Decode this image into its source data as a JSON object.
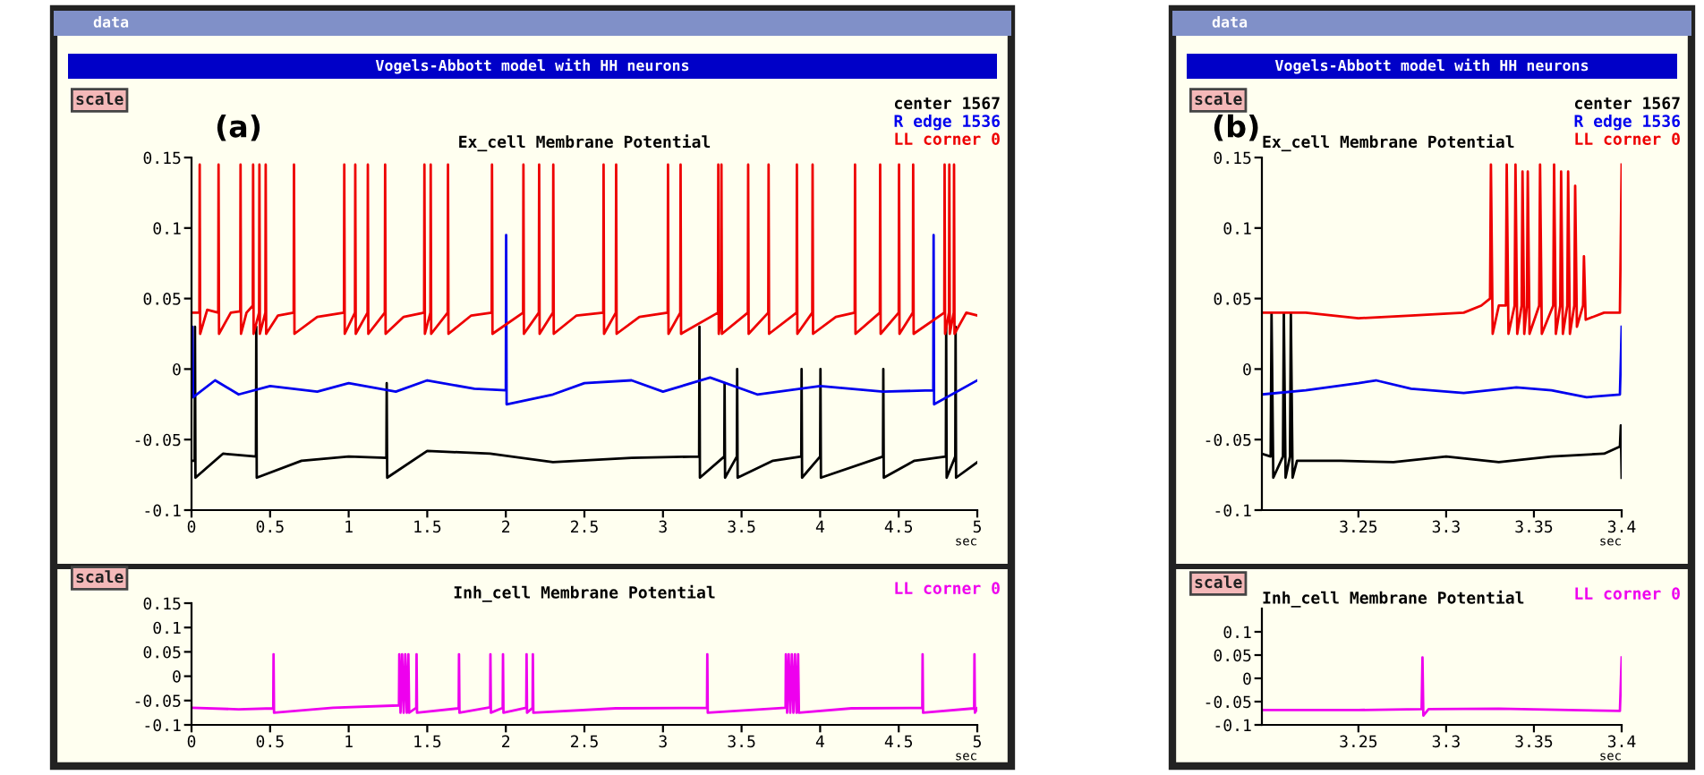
{
  "chart_data": [
    {
      "type": "line",
      "title": "Ex_cell Membrane Potential",
      "xlabel": "sec",
      "annotations": [
        "data",
        "Vogels-Abbott model with HH neurons",
        "scale",
        "(a)"
      ],
      "xlim": [
        0,
        5
      ],
      "xticks": [
        0,
        0.5,
        1,
        1.5,
        2,
        2.5,
        3,
        3.5,
        4,
        4.5,
        5
      ],
      "ylim": [
        -0.1,
        0.15
      ],
      "yticks": [
        -0.1,
        -0.05,
        0,
        0.05,
        0.1,
        0.15
      ],
      "legend": "top right",
      "grid": false,
      "marker": "none",
      "line_style": "solid",
      "series": [
        {
          "name": "center 1567",
          "color": "#000000",
          "x": [
            0,
            0.02,
            0.022,
            0.025,
            0.2,
            0.41,
            0.412,
            0.415,
            0.7,
            1.0,
            1.24,
            1.242,
            1.245,
            1.5,
            1.9,
            2.3,
            2.8,
            3.23,
            3.232,
            3.235,
            3.39,
            3.392,
            3.395,
            3.47,
            3.472,
            3.475,
            3.7,
            3.88,
            3.882,
            3.885,
            4.0,
            4.002,
            4.005,
            4.4,
            4.402,
            4.405,
            4.6,
            4.8,
            4.802,
            4.805,
            4.86,
            4.862,
            4.865,
            5
          ],
          "values": [
            -0.065,
            -0.065,
            0.03,
            -0.077,
            -0.06,
            -0.062,
            0.03,
            -0.077,
            -0.065,
            -0.062,
            -0.063,
            -0.01,
            -0.077,
            -0.058,
            -0.06,
            -0.066,
            -0.063,
            -0.062,
            0.03,
            -0.077,
            -0.062,
            -0.01,
            -0.077,
            -0.062,
            0.0,
            -0.077,
            -0.065,
            -0.062,
            0.0,
            -0.077,
            -0.062,
            0.0,
            -0.077,
            -0.062,
            0.0,
            -0.077,
            -0.065,
            -0.062,
            0.03,
            -0.077,
            -0.062,
            0.03,
            -0.077,
            -0.066
          ]
        },
        {
          "name": "R edge 1536",
          "color": "#0000ee",
          "x": [
            0,
            0.005,
            0.01,
            0.15,
            0.3,
            0.5,
            0.8,
            1.0,
            1.3,
            1.5,
            1.8,
            2.0,
            2.002,
            2.005,
            2.3,
            2.5,
            2.8,
            3.0,
            3.3,
            3.6,
            4.0,
            4.4,
            4.72,
            4.722,
            4.725,
            5
          ],
          "values": [
            -0.018,
            0.03,
            -0.02,
            -0.008,
            -0.018,
            -0.012,
            -0.016,
            -0.01,
            -0.016,
            -0.008,
            -0.014,
            -0.015,
            0.095,
            -0.025,
            -0.018,
            -0.01,
            -0.008,
            -0.016,
            -0.006,
            -0.018,
            -0.012,
            -0.016,
            -0.015,
            0.095,
            -0.025,
            -0.008
          ]
        },
        {
          "name": "LL corner 0",
          "color": "#ee0000",
          "x": [
            0,
            0.05,
            0.052,
            0.055,
            0.1,
            0.17,
            0.172,
            0.175,
            0.25,
            0.31,
            0.312,
            0.315,
            0.35,
            0.39,
            0.392,
            0.395,
            0.43,
            0.432,
            0.435,
            0.47,
            0.472,
            0.475,
            0.55,
            0.65,
            0.652,
            0.655,
            0.8,
            0.97,
            0.972,
            0.975,
            1.04,
            1.042,
            1.045,
            1.12,
            1.122,
            1.125,
            1.23,
            1.232,
            1.235,
            1.35,
            1.48,
            1.482,
            1.485,
            1.52,
            1.522,
            1.525,
            1.63,
            1.632,
            1.635,
            1.78,
            1.91,
            1.912,
            1.915,
            2.11,
            2.112,
            2.115,
            2.21,
            2.212,
            2.215,
            2.3,
            2.302,
            2.305,
            2.45,
            2.62,
            2.622,
            2.625,
            2.7,
            2.702,
            2.705,
            2.85,
            3.03,
            3.032,
            3.035,
            3.11,
            3.112,
            3.115,
            3.35,
            3.352,
            3.355,
            3.37,
            3.372,
            3.375,
            3.54,
            3.542,
            3.545,
            3.67,
            3.672,
            3.675,
            3.85,
            3.852,
            3.855,
            3.95,
            3.952,
            3.955,
            4.1,
            4.22,
            4.222,
            4.225,
            4.38,
            4.382,
            4.385,
            4.5,
            4.502,
            4.505,
            4.59,
            4.592,
            4.595,
            4.79,
            4.792,
            4.795,
            4.82,
            4.822,
            4.825,
            4.85,
            4.852,
            4.855,
            4.93,
            5
          ],
          "values": [
            0.04,
            0.04,
            0.145,
            0.025,
            0.042,
            0.04,
            0.145,
            0.025,
            0.04,
            0.041,
            0.145,
            0.025,
            0.04,
            0.045,
            0.145,
            0.025,
            0.04,
            0.145,
            0.025,
            0.04,
            0.145,
            0.025,
            0.038,
            0.04,
            0.145,
            0.025,
            0.037,
            0.04,
            0.145,
            0.025,
            0.04,
            0.145,
            0.025,
            0.04,
            0.145,
            0.025,
            0.04,
            0.145,
            0.025,
            0.037,
            0.04,
            0.145,
            0.025,
            0.04,
            0.145,
            0.025,
            0.04,
            0.145,
            0.025,
            0.038,
            0.04,
            0.145,
            0.025,
            0.04,
            0.145,
            0.025,
            0.04,
            0.145,
            0.025,
            0.04,
            0.145,
            0.025,
            0.038,
            0.04,
            0.145,
            0.025,
            0.04,
            0.145,
            0.025,
            0.037,
            0.04,
            0.145,
            0.025,
            0.04,
            0.145,
            0.025,
            0.04,
            0.145,
            0.025,
            0.04,
            0.145,
            0.025,
            0.04,
            0.145,
            0.025,
            0.04,
            0.145,
            0.025,
            0.04,
            0.145,
            0.025,
            0.04,
            0.145,
            0.025,
            0.037,
            0.04,
            0.145,
            0.025,
            0.04,
            0.145,
            0.025,
            0.04,
            0.145,
            0.025,
            0.04,
            0.145,
            0.025,
            0.04,
            0.145,
            0.025,
            0.04,
            0.145,
            0.025,
            0.04,
            0.145,
            0.025,
            0.04,
            0.038
          ]
        }
      ]
    },
    {
      "type": "line",
      "title": "Inh_cell Membrane Potential",
      "xlabel": "sec",
      "annotations": [
        "scale"
      ],
      "xlim": [
        0,
        5
      ],
      "xticks": [
        0,
        0.5,
        1,
        1.5,
        2,
        2.5,
        3,
        3.5,
        4,
        4.5,
        5
      ],
      "ylim": [
        -0.1,
        0.15
      ],
      "yticks": [
        -0.1,
        -0.05,
        0,
        0.05,
        0.1,
        0.15
      ],
      "legend": "top right",
      "grid": false,
      "marker": "none",
      "line_style": "solid",
      "series": [
        {
          "name": "LL corner 0",
          "color": "#ee00ee",
          "x": [
            0,
            0.3,
            0.52,
            0.522,
            0.525,
            0.9,
            1.32,
            1.322,
            1.33,
            1.34,
            1.35,
            1.36,
            1.37,
            1.38,
            1.385,
            1.43,
            1.432,
            1.435,
            1.7,
            1.702,
            1.705,
            1.9,
            1.902,
            1.905,
            1.98,
            1.982,
            1.985,
            2.13,
            2.132,
            2.135,
            2.17,
            2.172,
            2.175,
            2.7,
            3.28,
            3.282,
            3.285,
            3.78,
            3.782,
            3.79,
            3.8,
            3.81,
            3.82,
            3.83,
            3.84,
            3.85,
            3.86,
            3.865,
            4.2,
            4.65,
            4.652,
            4.655,
            4.98,
            4.982,
            4.985,
            5
          ],
          "values": [
            -0.065,
            -0.068,
            -0.066,
            0.045,
            -0.075,
            -0.065,
            -0.06,
            0.045,
            -0.075,
            0.045,
            -0.075,
            0.045,
            -0.075,
            0.045,
            -0.075,
            -0.065,
            0.045,
            -0.075,
            -0.066,
            0.045,
            -0.075,
            -0.064,
            0.045,
            -0.075,
            -0.065,
            0.045,
            -0.075,
            -0.065,
            0.045,
            -0.075,
            -0.065,
            0.045,
            -0.075,
            -0.066,
            -0.065,
            0.045,
            -0.075,
            -0.065,
            0.045,
            -0.075,
            0.045,
            -0.075,
            0.045,
            -0.075,
            0.045,
            -0.075,
            0.045,
            -0.075,
            -0.066,
            -0.065,
            0.045,
            -0.075,
            -0.066,
            0.045,
            -0.075,
            -0.066
          ]
        }
      ]
    },
    {
      "type": "line",
      "title": "Ex_cell Membrane Potential",
      "xlabel": "sec",
      "annotations": [
        "data",
        "Vogels-Abbott model with HH neurons",
        "scale",
        "(b)"
      ],
      "xlim": [
        3.195,
        3.4
      ],
      "xticks": [
        3.25,
        3.3,
        3.35,
        3.4
      ],
      "ylim": [
        -0.1,
        0.15
      ],
      "yticks": [
        -0.1,
        -0.05,
        0,
        0.05,
        0.1,
        0.15
      ],
      "legend": "top right",
      "grid": false,
      "marker": "none",
      "line_style": "solid",
      "series": [
        {
          "name": "center 1567",
          "color": "#000000",
          "x": [
            3.195,
            3.2,
            3.2005,
            3.2015,
            3.207,
            3.2075,
            3.2085,
            3.211,
            3.2115,
            3.2125,
            3.215,
            3.24,
            3.27,
            3.3,
            3.33,
            3.36,
            3.39,
            3.399,
            3.3995,
            3.4
          ],
          "values": [
            -0.06,
            -0.062,
            0.04,
            -0.077,
            -0.062,
            0.04,
            -0.077,
            -0.062,
            0.04,
            -0.077,
            -0.065,
            -0.065,
            -0.066,
            -0.062,
            -0.066,
            -0.062,
            -0.06,
            -0.055,
            -0.04,
            -0.077
          ]
        },
        {
          "name": "R edge 1536",
          "color": "#0000ee",
          "x": [
            3.195,
            3.22,
            3.25,
            3.26,
            3.28,
            3.31,
            3.34,
            3.36,
            3.38,
            3.399,
            3.4
          ],
          "values": [
            -0.018,
            -0.015,
            -0.01,
            -0.008,
            -0.014,
            -0.017,
            -0.013,
            -0.015,
            -0.02,
            -0.018,
            0.03
          ]
        },
        {
          "name": "LL corner 0",
          "color": "#ee0000",
          "x": [
            3.195,
            3.22,
            3.25,
            3.28,
            3.31,
            3.32,
            3.325,
            3.3255,
            3.3265,
            3.33,
            3.334,
            3.3345,
            3.3355,
            3.339,
            3.3395,
            3.3405,
            3.343,
            3.3435,
            3.3445,
            3.346,
            3.3465,
            3.3475,
            3.353,
            3.3535,
            3.3545,
            3.361,
            3.3615,
            3.3625,
            3.365,
            3.3655,
            3.3665,
            3.369,
            3.3695,
            3.3705,
            3.373,
            3.3735,
            3.3745,
            3.378,
            3.3785,
            3.3795,
            3.39,
            3.399,
            3.4
          ],
          "values": [
            0.04,
            0.04,
            0.036,
            0.038,
            0.04,
            0.045,
            0.05,
            0.145,
            0.025,
            0.045,
            0.045,
            0.145,
            0.025,
            0.045,
            0.145,
            0.025,
            0.045,
            0.14,
            0.025,
            0.045,
            0.14,
            0.025,
            0.045,
            0.145,
            0.025,
            0.045,
            0.145,
            0.025,
            0.045,
            0.14,
            0.025,
            0.045,
            0.14,
            0.025,
            0.045,
            0.13,
            0.03,
            0.045,
            0.08,
            0.035,
            0.04,
            0.04,
            0.145
          ]
        }
      ]
    },
    {
      "type": "line",
      "title": "Inh_cell Membrane Potential",
      "xlabel": "sec",
      "annotations": [
        "scale"
      ],
      "xlim": [
        3.195,
        3.4
      ],
      "xticks": [
        3.25,
        3.3,
        3.35,
        3.4
      ],
      "ylim": [
        -0.1,
        0.15
      ],
      "yticks": [
        -0.1,
        -0.05,
        0,
        0.05,
        0.1
      ],
      "legend": "top right",
      "grid": false,
      "marker": "none",
      "line_style": "solid",
      "series": [
        {
          "name": "LL corner 0",
          "color": "#ee00ee",
          "x": [
            3.195,
            3.25,
            3.286,
            3.2865,
            3.287,
            3.29,
            3.33,
            3.37,
            3.399,
            3.4
          ],
          "values": [
            -0.068,
            -0.068,
            -0.066,
            0.045,
            -0.08,
            -0.066,
            -0.065,
            -0.068,
            -0.07,
            0.045
          ]
        }
      ]
    }
  ]
}
